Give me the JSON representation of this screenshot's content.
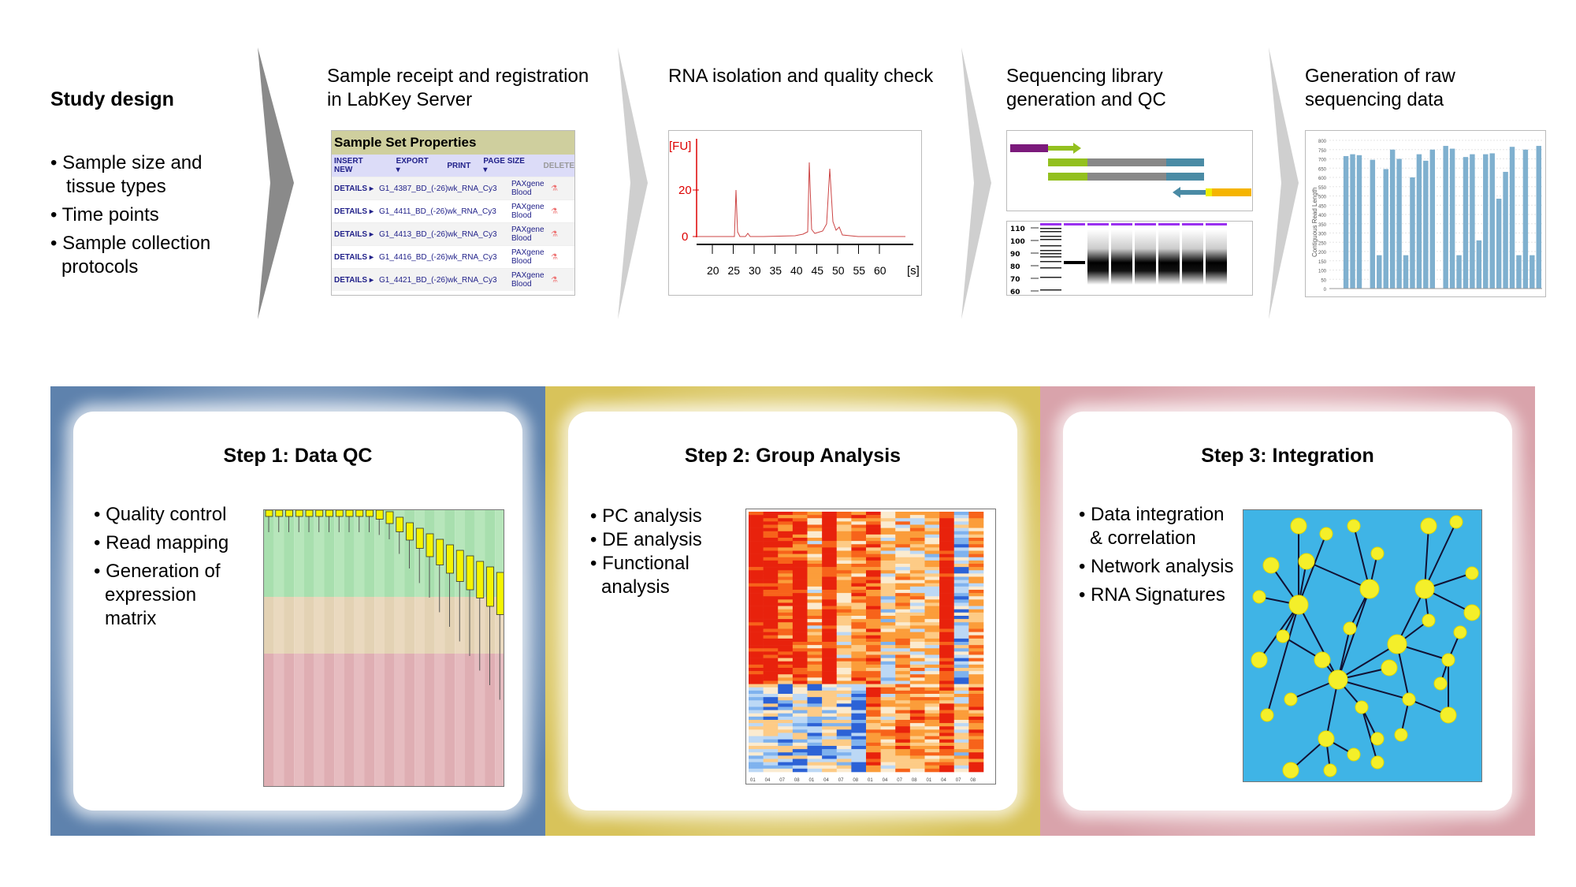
{
  "top": {
    "study": {
      "title": "Study design",
      "bullets": [
        [
          "• Sample size and",
          "tissue types"
        ],
        [
          "• Time points"
        ],
        [
          "• Sample collection",
          "protocols"
        ]
      ]
    },
    "stages": [
      {
        "title": [
          "Sample receipt and registration",
          "in LabKey Server"
        ]
      },
      {
        "title": [
          "RNA isolation and quality check"
        ]
      },
      {
        "title": [
          "Sequencing library",
          "generation and QC"
        ]
      },
      {
        "title": [
          "Generation of raw",
          "sequencing data"
        ]
      }
    ],
    "labkey": {
      "title": "Sample Set Properties",
      "toolbar": [
        "INSERT NEW",
        "EXPORT ▾",
        "PRINT",
        "PAGE SIZE ▾",
        "DELETE"
      ],
      "rows": [
        {
          "link": "DETAILS ▸",
          "name": "G1_4387_BD_(-26)wk_RNA_Cy3",
          "type": "PAXgene Blood"
        },
        {
          "link": "DETAILS ▸",
          "name": "G1_4411_BD_(-26)wk_RNA_Cy3",
          "type": "PAXgene Blood"
        },
        {
          "link": "DETAILS ▸",
          "name": "G1_4413_BD_(-26)wk_RNA_Cy3",
          "type": "PAXgene Blood"
        },
        {
          "link": "DETAILS ▸",
          "name": "G1_4416_BD_(-26)wk_RNA_Cy3",
          "type": "PAXgene Blood"
        },
        {
          "link": "DETAILS ▸",
          "name": "G1_4421_BD_(-26)wk_RNA_Cy3",
          "type": "PAXgene Blood"
        }
      ]
    },
    "bioanalyzer": {
      "ylabel": "[FU]",
      "yticks": [
        "20",
        "0"
      ],
      "xticks": [
        "20",
        "25",
        "30",
        "35",
        "40",
        "45",
        "50",
        "55",
        "60"
      ],
      "xunit": "[s]"
    },
    "gel": {
      "ladder": [
        "110",
        "100",
        "90",
        "80",
        "70",
        "60"
      ]
    },
    "reads": {
      "ylabel": "Contiguous Read Length",
      "yticks": [
        "800",
        "750",
        "700",
        "650",
        "600",
        "550",
        "500",
        "450",
        "400",
        "350",
        "300",
        "250",
        "200",
        "150",
        "100",
        "50",
        "0"
      ],
      "values": [
        0,
        0,
        715,
        725,
        720,
        0,
        695,
        180,
        645,
        750,
        700,
        180,
        600,
        725,
        690,
        750,
        0,
        770,
        755,
        180,
        710,
        725,
        260,
        725,
        730,
        485,
        630,
        765,
        180,
        750,
        180,
        770
      ]
    }
  },
  "steps": [
    {
      "title": "Step 1: Data QC",
      "bullets": [
        [
          "• Quality control"
        ],
        [
          "• Read mapping"
        ],
        [
          "• Generation of",
          "expression",
          "matrix"
        ]
      ],
      "color": "#5e82ad"
    },
    {
      "title": "Step 2: Group Analysis",
      "bullets": [
        [
          "• PC analysis"
        ],
        [
          "• DE analysis"
        ],
        [
          "• Functional",
          "analysis"
        ]
      ],
      "color": "#d8c35a"
    },
    {
      "title": "Step 3: Integration",
      "bullets": [
        [
          "• Data integration",
          "& correlation"
        ],
        [
          "• Network analysis"
        ],
        [
          "• RNA Signatures"
        ]
      ],
      "color": "#d9a3ab"
    }
  ],
  "heatmap_labels": [
    "01",
    "04",
    "07",
    "08",
    "01",
    "04",
    "07",
    "08",
    "01",
    "04",
    "07",
    "08",
    "01",
    "04",
    "07",
    "08"
  ]
}
